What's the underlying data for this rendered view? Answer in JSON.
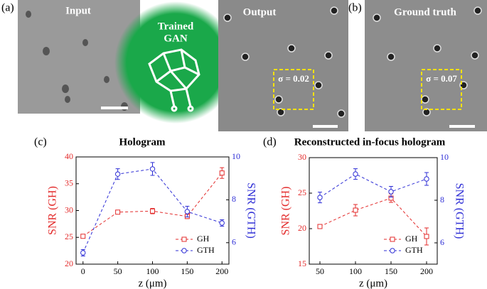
{
  "figure": {
    "panel_a": "(a)",
    "panel_b": "(b)",
    "input": "Input",
    "gan": [
      "Trained",
      "GAN"
    ],
    "output": "Output",
    "output_sigma": "σ = 0.02",
    "ground_truth": "Ground truth",
    "gt_sigma": "σ = 0.07"
  },
  "chart_data": [
    {
      "type": "line",
      "label": "(c)",
      "title": "Hologram",
      "x_label": "z (μm)",
      "y_label": "SNR (GH)",
      "y2_label": "SNR (GTH)",
      "x": [
        0,
        50,
        100,
        150,
        200
      ],
      "xlim": [
        -10,
        210
      ],
      "xticks": [
        0,
        50,
        100,
        150,
        200
      ],
      "ylim": [
        20,
        40
      ],
      "yticks": [
        20,
        25,
        30,
        35,
        40
      ],
      "y2lim": [
        5,
        10
      ],
      "y2ticks": [
        6,
        8,
        10
      ],
      "legend": "lower right",
      "series": [
        {
          "name": "GH",
          "color": "#e32b2b",
          "marker": "square",
          "values": [
            25.2,
            29.7,
            29.9,
            28.9,
            37.0
          ],
          "errors": [
            0.3,
            0.3,
            0.5,
            0.4,
            1.0
          ]
        },
        {
          "name": "GTH",
          "color": "#2f2fd6",
          "marker": "circle",
          "axis": "y2",
          "values": [
            5.53,
            9.2,
            9.44,
            7.45,
            6.92
          ],
          "errors": [
            0.15,
            0.25,
            0.3,
            0.25,
            0.15
          ]
        }
      ]
    },
    {
      "type": "line",
      "label": "(d)",
      "title": "Reconstructed in-focus hologram",
      "x_label": "z (μm)",
      "y_label": "SNR (GH)",
      "y2_label": "SNR (GTH)",
      "x": [
        50,
        100,
        150,
        200
      ],
      "xlim": [
        35,
        215
      ],
      "xticks": [
        50,
        100,
        150,
        200
      ],
      "ylim": [
        15,
        30
      ],
      "yticks": [
        15,
        20,
        25,
        30
      ],
      "y2lim": [
        5,
        10
      ],
      "y2ticks": [
        6,
        8,
        10
      ],
      "legend": "lower right",
      "series": [
        {
          "name": "GH",
          "color": "#e32b2b",
          "marker": "square",
          "values": [
            20.3,
            22.6,
            24.3,
            18.9
          ],
          "errors": [
            0.2,
            0.8,
            0.6,
            1.2
          ]
        },
        {
          "name": "GTH",
          "color": "#2f2fd6",
          "marker": "circle",
          "axis": "y2",
          "values": [
            8.13,
            9.23,
            8.4,
            9.0
          ],
          "errors": [
            0.25,
            0.25,
            0.25,
            0.3
          ]
        }
      ]
    }
  ]
}
